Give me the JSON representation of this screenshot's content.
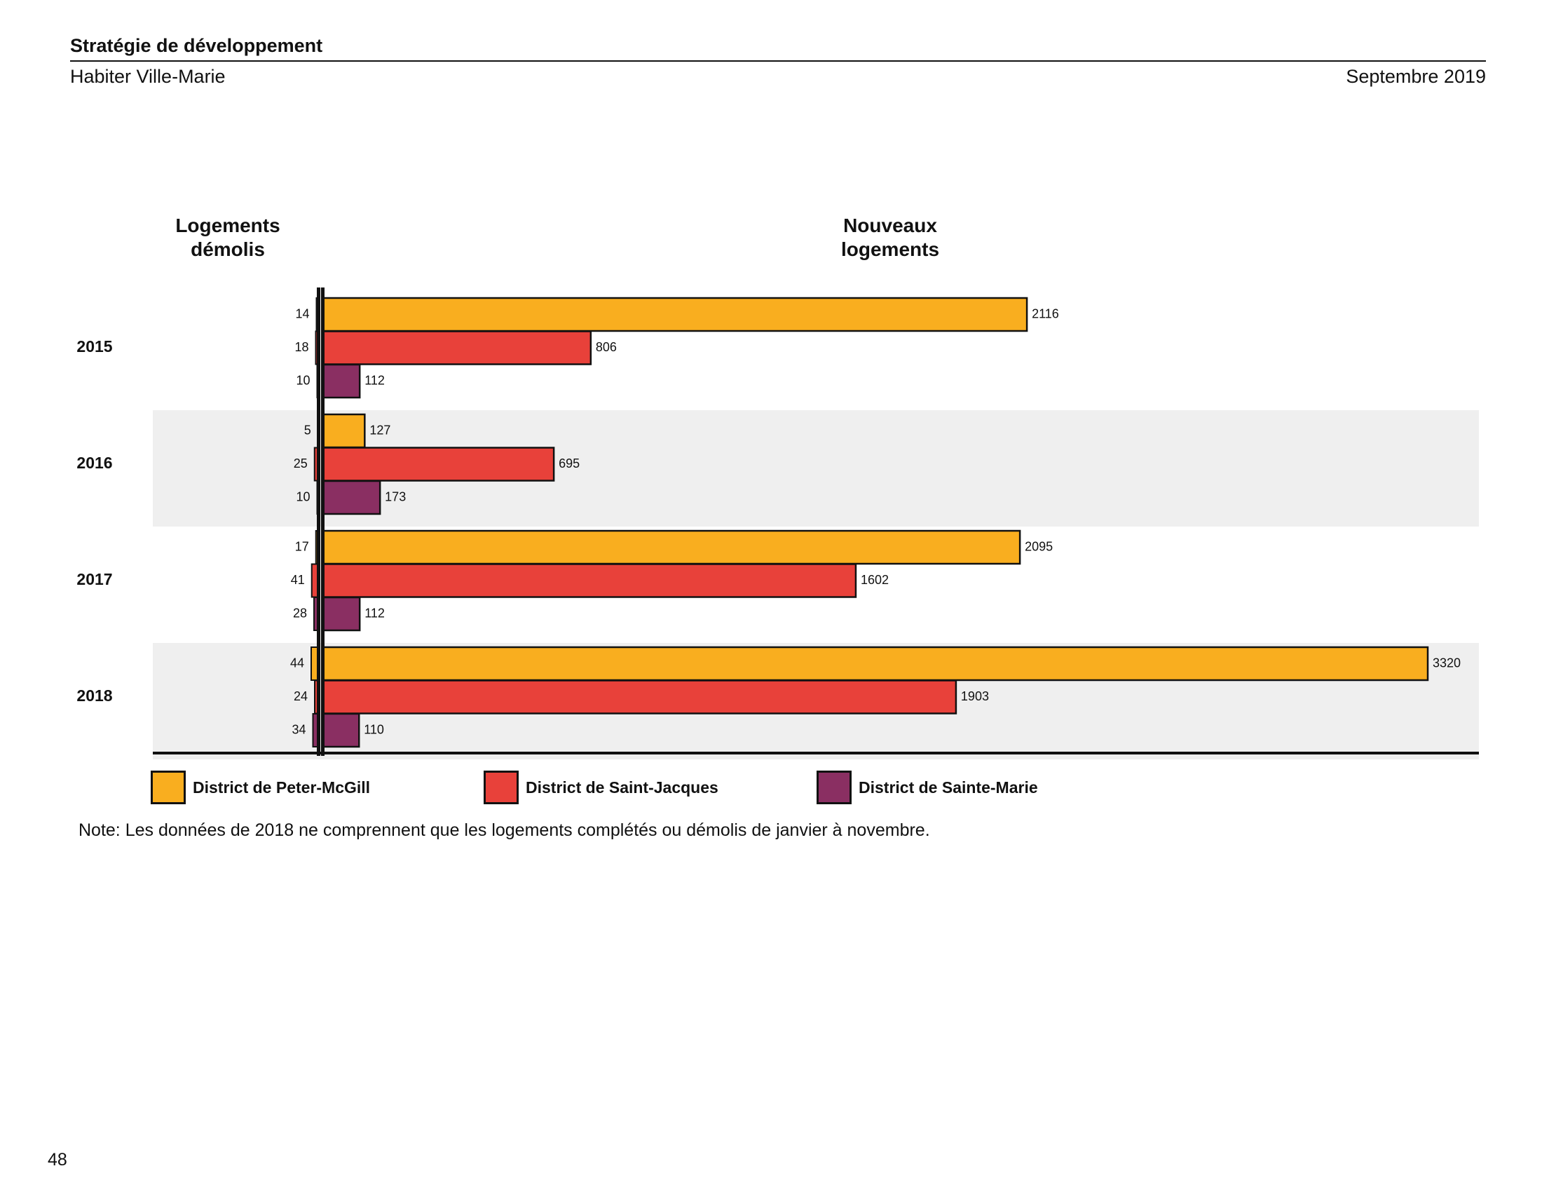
{
  "header": {
    "title": "Stratégie de développement",
    "subtitle": "Habiter Ville-Marie",
    "date": "Septembre 2019"
  },
  "chart_headings": {
    "left_line1": "Logements",
    "left_line2": "démolis",
    "right_line1": "Nouveaux",
    "right_line2": "logements"
  },
  "chart_data": {
    "type": "bar",
    "orientation": "horizontal-diverging",
    "title": "",
    "left_label": "Logements démolis",
    "right_label": "Nouveaux logements",
    "categories": [
      "2015",
      "2016",
      "2017",
      "2018"
    ],
    "series": [
      {
        "name": "District de Peter-McGill",
        "color": "#F9AE1F",
        "demolished": [
          14,
          5,
          17,
          44
        ],
        "new": [
          2116,
          127,
          2095,
          3320
        ]
      },
      {
        "name": "District de Saint-Jacques",
        "color": "#E8413A",
        "demolished": [
          18,
          25,
          41,
          24
        ],
        "new": [
          806,
          695,
          1602,
          1903
        ]
      },
      {
        "name": "District de Sainte-Marie",
        "color": "#8A2F62",
        "demolished": [
          10,
          10,
          28,
          34
        ],
        "new": [
          112,
          173,
          112,
          110
        ]
      }
    ],
    "legend_position": "bottom",
    "band_color": "#EFEFEF",
    "outline_color": "#111111"
  },
  "note": "Note: Les données de 2018 ne comprennent que les logements complétés ou démolis de janvier à novembre.",
  "page_number": "48"
}
